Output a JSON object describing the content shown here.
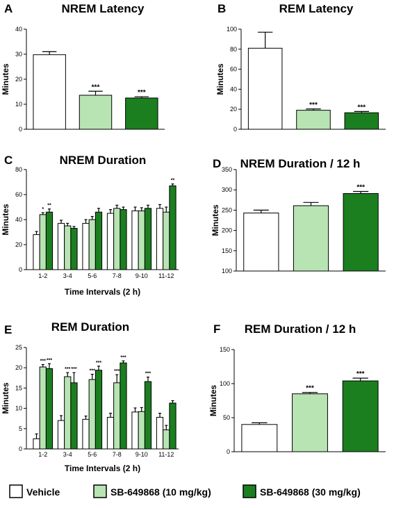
{
  "colors": {
    "vehicle": "#ffffff",
    "sb10": "#b8e4b3",
    "sb30": "#1b7f20",
    "stroke": "#000000"
  },
  "legend": [
    {
      "label": "Vehicle",
      "color_key": "vehicle"
    },
    {
      "label": "SB-649868 (10 mg/kg)",
      "color_key": "sb10"
    },
    {
      "label": "SB-649868 (30 mg/kg)",
      "color_key": "sb30"
    }
  ],
  "chart_data": [
    {
      "id": "A",
      "panel_label": "A",
      "type": "bar",
      "title": "NREM Latency",
      "ylabel": "Minutes",
      "xlabel": "",
      "ylim": [
        0,
        40
      ],
      "yticks": [
        0,
        10,
        20,
        30,
        40
      ],
      "categories": [
        "Vehicle",
        "SB-649868 (10 mg/kg)",
        "SB-649868 (30 mg/kg)"
      ],
      "values": [
        29.8,
        13.6,
        12.5
      ],
      "errors": [
        1.2,
        1.6,
        0.5
      ],
      "significance": [
        "",
        "***",
        "***"
      ]
    },
    {
      "id": "B",
      "panel_label": "B",
      "type": "bar",
      "title": "REM Latency",
      "ylabel": "Minutes",
      "xlabel": "",
      "ylim": [
        0,
        100
      ],
      "yticks": [
        0,
        20,
        40,
        60,
        80,
        100
      ],
      "categories": [
        "Vehicle",
        "SB-649868 (10 mg/kg)",
        "SB-649868 (30 mg/kg)"
      ],
      "values": [
        81,
        19,
        16.5
      ],
      "errors": [
        16,
        1.3,
        1.3
      ],
      "significance": [
        "",
        "***",
        "***"
      ]
    },
    {
      "id": "C",
      "panel_label": "C",
      "type": "bar",
      "title": "NREM Duration",
      "ylabel": "Minutes",
      "xlabel": "Time Intervals (2 h)",
      "ylim": [
        0,
        80
      ],
      "yticks": [
        0,
        20,
        40,
        60,
        80
      ],
      "categories": [
        "1-2",
        "3-4",
        "5-6",
        "7-8",
        "9-10",
        "11-12"
      ],
      "series": [
        {
          "name": "Vehicle",
          "color_key": "vehicle",
          "values": [
            28,
            37,
            37,
            45,
            47,
            49
          ],
          "errors": [
            2.5,
            2.5,
            3,
            3,
            3,
            3
          ],
          "significance": [
            "",
            "",
            "",
            "",
            "",
            ""
          ]
        },
        {
          "name": "SB-649868 (10 mg/kg)",
          "color_key": "sb10",
          "values": [
            44,
            35,
            40,
            49,
            47,
            46
          ],
          "errors": [
            1.5,
            2,
            2.5,
            2.5,
            2.5,
            4
          ],
          "significance": [
            "*",
            "",
            "",
            "",
            "",
            ""
          ]
        },
        {
          "name": "SB-649868 (30 mg/kg)",
          "color_key": "sb30",
          "values": [
            46,
            33,
            46,
            48,
            49,
            67
          ],
          "errors": [
            2.5,
            1.5,
            3,
            2,
            2.5,
            1.5
          ],
          "significance": [
            "**",
            "",
            "",
            "",
            "",
            "**"
          ]
        }
      ]
    },
    {
      "id": "D",
      "panel_label": "D",
      "type": "bar",
      "title": "NREM Duration / 12 h",
      "ylabel": "Minutes",
      "xlabel": "",
      "ylim": [
        100,
        350
      ],
      "yticks": [
        100,
        150,
        200,
        250,
        300,
        350
      ],
      "categories": [
        "Vehicle",
        "SB-649868 (10 mg/kg)",
        "SB-649868 (30 mg/kg)"
      ],
      "values": [
        243,
        261,
        291
      ],
      "errors": [
        7,
        8,
        5
      ],
      "significance": [
        "",
        "",
        "***"
      ]
    },
    {
      "id": "E",
      "panel_label": "E",
      "type": "bar",
      "title": "REM Duration",
      "ylabel": "Minutes",
      "xlabel": "Time Intervals (2 h)",
      "ylim": [
        0,
        25
      ],
      "yticks": [
        0,
        5,
        10,
        15,
        20,
        25
      ],
      "categories": [
        "1-2",
        "3-4",
        "5-6",
        "7-8",
        "9-10",
        "11-12"
      ],
      "series": [
        {
          "name": "Vehicle",
          "color_key": "vehicle",
          "values": [
            2.5,
            7,
            7.3,
            7.8,
            9.1,
            7.8
          ],
          "errors": [
            1.2,
            1.2,
            0.8,
            1,
            1,
            1
          ],
          "significance": [
            "",
            "",
            "",
            "",
            "",
            ""
          ]
        },
        {
          "name": "SB-649868 (10 mg/kg)",
          "color_key": "sb10",
          "values": [
            20.2,
            17.8,
            17.1,
            16.3,
            9.2,
            4.7
          ],
          "errors": [
            0.6,
            1,
            1.3,
            2,
            1,
            1.1
          ],
          "significance": [
            "***",
            "***",
            "***",
            "***",
            "",
            ""
          ]
        },
        {
          "name": "SB-649868 (30 mg/kg)",
          "color_key": "sb30",
          "values": [
            19.8,
            16.3,
            19.4,
            21.2,
            16.6,
            11.3
          ],
          "errors": [
            1.2,
            2.5,
            1,
            0.5,
            1.1,
            0.6
          ],
          "significance": [
            "***",
            "***",
            "***",
            "***",
            "***",
            ""
          ]
        }
      ]
    },
    {
      "id": "F",
      "panel_label": "F",
      "type": "bar",
      "title": "REM Duration / 12 h",
      "ylabel": "Minutes",
      "xlabel": "",
      "ylim": [
        0,
        150
      ],
      "yticks": [
        0,
        50,
        100,
        150
      ],
      "categories": [
        "Vehicle",
        "SB-649868 (10 mg/kg)",
        "SB-649868 (30 mg/kg)"
      ],
      "values": [
        40,
        85,
        104
      ],
      "errors": [
        2.5,
        2,
        4
      ],
      "significance": [
        "",
        "***",
        "***"
      ]
    }
  ]
}
